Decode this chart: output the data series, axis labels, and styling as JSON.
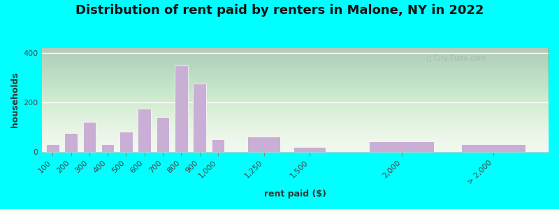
{
  "title": "Distribution of rent paid by renters in Malone, NY in 2022",
  "xlabel": "rent paid ($)",
  "ylabel": "households",
  "bar_color": "#c9aed6",
  "bar_edgecolor": "#c9aed6",
  "background_outer": "#00ffff",
  "ylim": [
    0,
    420
  ],
  "yticks": [
    0,
    200,
    400
  ],
  "categories": [
    "100",
    "200",
    "300",
    "400",
    "500",
    "600",
    "700",
    "800",
    "900",
    "1,000",
    "1,250",
    "1,500",
    "2,000",
    "> 2,000"
  ],
  "bar_values": [
    30,
    75,
    120,
    30,
    80,
    175,
    140,
    350,
    275,
    50,
    60,
    20,
    40,
    30
  ],
  "x_numeric": [
    100,
    200,
    300,
    400,
    500,
    600,
    700,
    800,
    900,
    1000,
    1250,
    1500,
    2000,
    2500
  ],
  "bar_width_numeric": [
    80,
    80,
    80,
    80,
    80,
    80,
    80,
    80,
    80,
    80,
    200,
    200,
    400,
    400
  ],
  "watermark": "City-Data.com",
  "title_fontsize": 13,
  "axis_label_fontsize": 9,
  "tick_fontsize": 8
}
